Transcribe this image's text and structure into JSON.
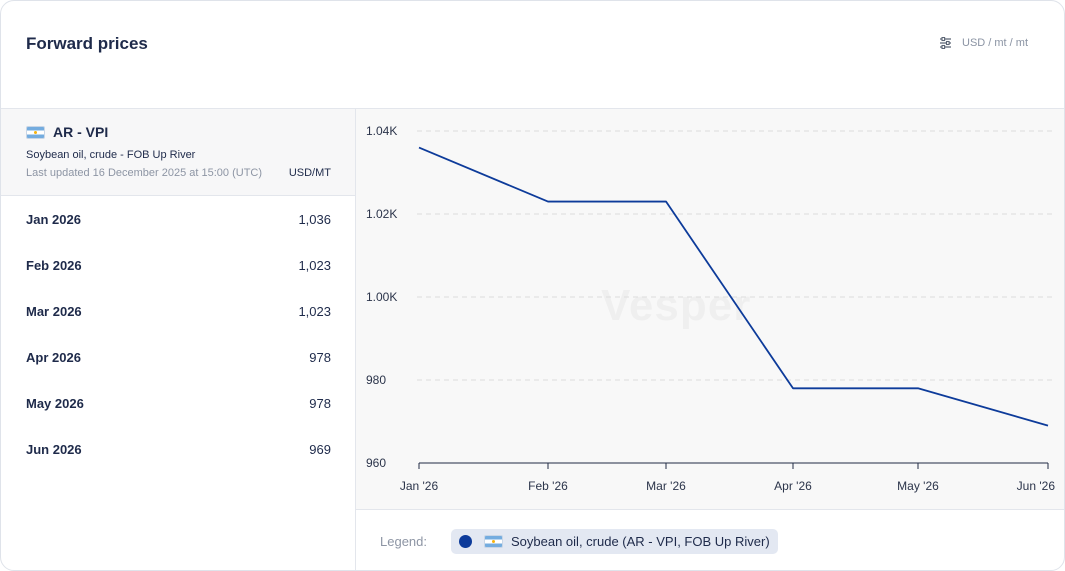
{
  "header": {
    "title": "Forward prices",
    "unit_toggle": "USD / mt / mt"
  },
  "market": {
    "name": "AR - VPI",
    "product": "Soybean oil, crude - FOB Up River",
    "last_updated": "Last updated 16 December 2025 at 15:00 (UTC)",
    "unit": "USD/MT"
  },
  "rows": [
    {
      "month": "Jan 2026",
      "value": "1,036"
    },
    {
      "month": "Feb 2026",
      "value": "1,023"
    },
    {
      "month": "Mar 2026",
      "value": "1,023"
    },
    {
      "month": "Apr 2026",
      "value": "978"
    },
    {
      "month": "May 2026",
      "value": "978"
    },
    {
      "month": "Jun 2026",
      "value": "969"
    }
  ],
  "legend": {
    "label": "Legend:",
    "series_label": "Soybean oil, crude (AR - VPI, FOB Up River)"
  },
  "watermark": "Vesper",
  "colors": {
    "series": "#0d3b9a",
    "grid": "#dcdcdc"
  },
  "chart_data": {
    "type": "line",
    "x": [
      "Jan '26",
      "Feb '26",
      "Mar '26",
      "Apr '26",
      "May '26",
      "Jun '26"
    ],
    "series": [
      {
        "name": "Soybean oil, crude (AR - VPI, FOB Up River)",
        "values": [
          1036,
          1023,
          1023,
          978,
          978,
          969
        ]
      }
    ],
    "y_ticks": [
      "960",
      "980",
      "1.00K",
      "1.02K",
      "1.04K"
    ],
    "y_tick_values": [
      960,
      980,
      1000,
      1020,
      1040
    ],
    "ylim": [
      960,
      1040
    ],
    "grid": true,
    "legend": "bottom"
  }
}
